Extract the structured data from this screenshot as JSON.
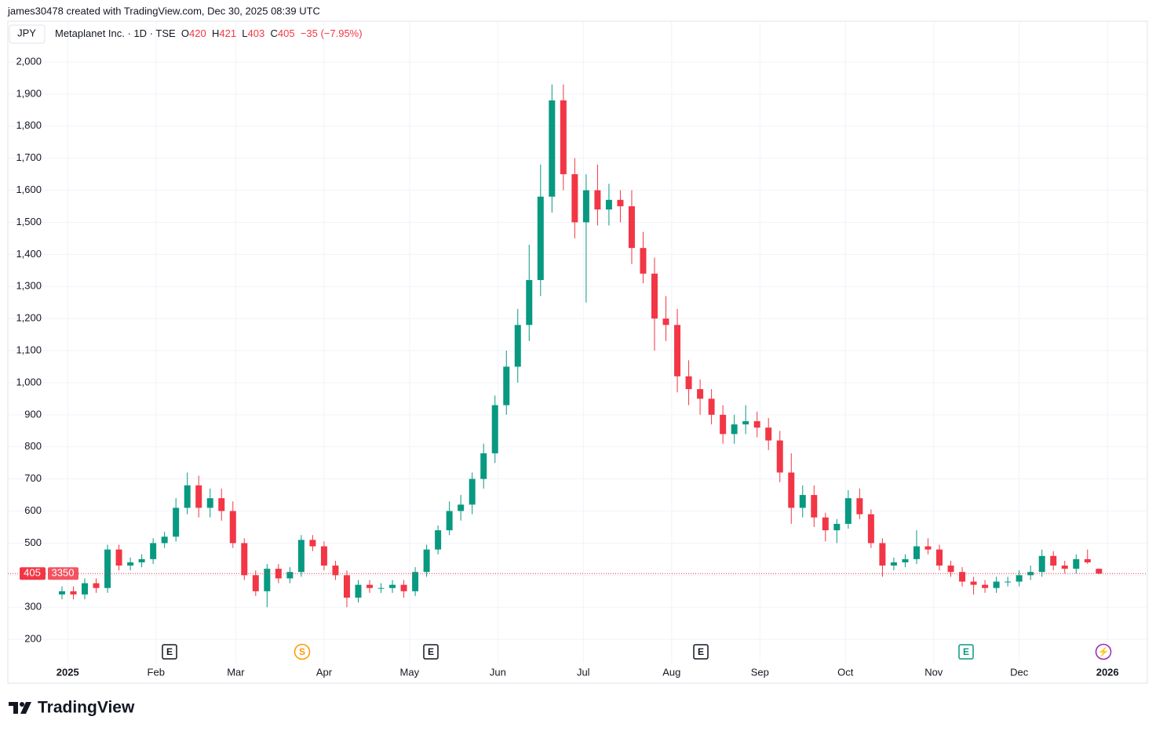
{
  "caption": "james30478 created with TradingView.com, Dec 30, 2025 08:39 UTC",
  "currency": "JPY",
  "symbol": "Metaplanet Inc. · 1D · TSE",
  "ohlc_letters": [
    "O",
    "H",
    "L",
    "C"
  ],
  "change": "−35 (−7.95%)",
  "price_label_extra": "3350",
  "events": [
    "E",
    "S",
    "E",
    "E",
    "E",
    "⚡"
  ],
  "logo": "TradingView",
  "chart_data": {
    "type": "candlestick",
    "up_color": "#089981",
    "down_color": "#f23645",
    "x": [
      -2,
      2,
      6,
      10,
      14,
      18,
      22,
      26,
      30,
      34,
      38,
      42,
      46,
      50,
      54,
      58,
      62,
      66,
      70,
      74,
      78,
      82,
      86,
      90,
      94,
      98,
      102,
      106,
      110,
      114,
      118,
      122,
      126,
      130,
      134,
      138,
      142,
      146,
      150,
      154,
      158,
      162,
      166,
      170,
      174,
      178,
      182,
      186,
      190,
      194,
      198,
      202,
      206,
      210,
      214,
      218,
      222,
      226,
      230,
      234,
      238,
      242,
      246,
      250,
      254,
      258,
      262,
      266,
      270,
      274,
      278,
      282,
      286,
      290,
      294,
      298,
      302,
      306,
      310,
      314,
      318,
      322,
      326,
      330,
      334,
      338,
      342,
      346,
      350,
      354,
      358,
      362
    ],
    "open": [
      340,
      350,
      340,
      375,
      360,
      480,
      430,
      440,
      450,
      500,
      520,
      610,
      680,
      610,
      640,
      600,
      500,
      400,
      350,
      420,
      390,
      410,
      510,
      490,
      430,
      400,
      330,
      370,
      360,
      360,
      370,
      350,
      410,
      480,
      540,
      600,
      620,
      700,
      780,
      930,
      1050,
      1180,
      1320,
      1580,
      1880,
      1650,
      1500,
      1600,
      1540,
      1570,
      1550,
      1420,
      1340,
      1200,
      1180,
      1020,
      980,
      950,
      900,
      840,
      870,
      880,
      860,
      820,
      720,
      610,
      650,
      580,
      540,
      560,
      640,
      590,
      500,
      430,
      440,
      450,
      490,
      480,
      430,
      410,
      380,
      370,
      360,
      380,
      380,
      400,
      410,
      460,
      430,
      420,
      450,
      420
    ],
    "high": [
      365,
      365,
      390,
      390,
      495,
      495,
      455,
      465,
      515,
      535,
      640,
      720,
      710,
      670,
      670,
      630,
      515,
      415,
      435,
      435,
      425,
      525,
      525,
      505,
      445,
      415,
      385,
      385,
      375,
      385,
      385,
      425,
      495,
      555,
      630,
      650,
      720,
      810,
      960,
      1100,
      1230,
      1430,
      1680,
      1930,
      1930,
      1700,
      1650,
      1680,
      1620,
      1600,
      1600,
      1470,
      1390,
      1270,
      1230,
      1070,
      1010,
      980,
      930,
      900,
      930,
      910,
      890,
      850,
      780,
      680,
      680,
      595,
      575,
      665,
      670,
      605,
      515,
      455,
      465,
      540,
      515,
      495,
      445,
      425,
      395,
      385,
      395,
      395,
      415,
      430,
      480,
      475,
      445,
      465,
      480,
      421
    ],
    "low": [
      325,
      325,
      325,
      345,
      345,
      415,
      415,
      425,
      435,
      485,
      505,
      590,
      580,
      580,
      570,
      485,
      385,
      335,
      300,
      375,
      375,
      395,
      475,
      415,
      385,
      300,
      315,
      345,
      345,
      345,
      330,
      335,
      395,
      465,
      525,
      570,
      590,
      670,
      750,
      900,
      1000,
      1130,
      1270,
      1530,
      1600,
      1450,
      1250,
      1490,
      1490,
      1500,
      1370,
      1310,
      1100,
      1130,
      970,
      930,
      900,
      870,
      810,
      810,
      840,
      830,
      790,
      690,
      560,
      580,
      550,
      505,
      500,
      545,
      575,
      485,
      395,
      415,
      425,
      435,
      465,
      415,
      395,
      365,
      340,
      345,
      345,
      365,
      365,
      385,
      395,
      415,
      405,
      405,
      435,
      403
    ],
    "close": [
      350,
      340,
      375,
      360,
      480,
      430,
      440,
      450,
      500,
      520,
      610,
      680,
      610,
      640,
      600,
      500,
      400,
      350,
      420,
      390,
      410,
      510,
      490,
      430,
      400,
      330,
      370,
      360,
      360,
      370,
      350,
      410,
      480,
      540,
      600,
      620,
      700,
      780,
      930,
      1050,
      1180,
      1320,
      1580,
      1880,
      1650,
      1500,
      1600,
      1540,
      1570,
      1550,
      1420,
      1340,
      1200,
      1180,
      1020,
      980,
      950,
      900,
      840,
      870,
      880,
      860,
      820,
      720,
      610,
      650,
      580,
      540,
      560,
      640,
      590,
      500,
      430,
      440,
      450,
      490,
      480,
      430,
      410,
      380,
      370,
      360,
      380,
      380,
      400,
      410,
      460,
      430,
      420,
      450,
      440,
      405
    ],
    "xlim": [
      -21,
      379
    ],
    "xticks": [
      {
        "value": 0,
        "label": "2025"
      },
      {
        "value": 31,
        "label": "Feb"
      },
      {
        "value": 59,
        "label": "Mar"
      },
      {
        "value": 90,
        "label": "Apr"
      },
      {
        "value": 120,
        "label": "May"
      },
      {
        "value": 151,
        "label": "Jun"
      },
      {
        "value": 181,
        "label": "Jul"
      },
      {
        "value": 212,
        "label": "Aug"
      },
      {
        "value": 243,
        "label": "Sep"
      },
      {
        "value": 273,
        "label": "Oct"
      },
      {
        "value": 304,
        "label": "Nov"
      },
      {
        "value": 334,
        "label": "Dec"
      },
      {
        "value": 365,
        "label": "2026"
      }
    ],
    "ylim": [
      127,
      2127
    ],
    "yticks": [
      200,
      300,
      400,
      500,
      600,
      700,
      800,
      900,
      {
        "value": 1000,
        "label": "1,000"
      },
      {
        "value": 1100,
        "label": "1,100"
      },
      {
        "value": 1200,
        "label": "1,200"
      },
      {
        "value": 1300,
        "label": "1,300"
      },
      {
        "value": 1400,
        "label": "1,400"
      },
      {
        "value": 1500,
        "label": "1,500"
      },
      {
        "value": 1600,
        "label": "1,600"
      },
      {
        "value": 1700,
        "label": "1,700"
      },
      {
        "value": 1800,
        "label": "1,800"
      },
      {
        "value": 1900,
        "label": "1,900"
      },
      {
        "value": 2000,
        "label": "2,000"
      }
    ],
    "grid": true
  }
}
